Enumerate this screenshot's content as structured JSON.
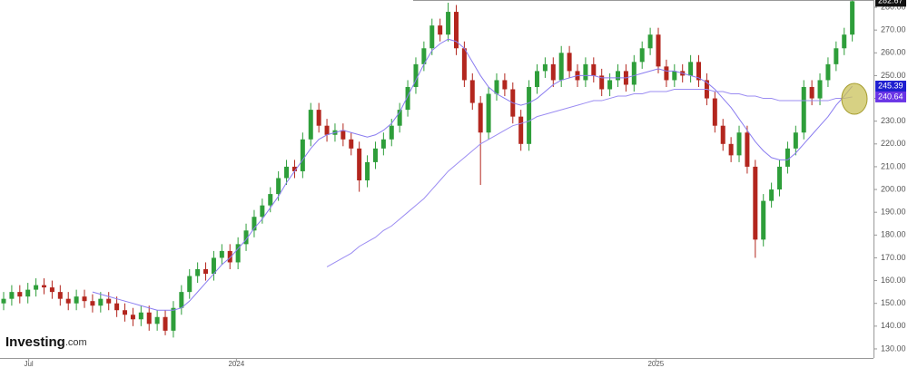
{
  "chart_data": {
    "type": "candlestick",
    "logo": "Investing",
    "logo_suffix": ".com",
    "x": [
      0,
      1,
      2,
      3,
      4,
      5,
      6,
      7,
      8,
      9,
      10,
      11,
      12,
      13,
      14,
      15,
      16,
      17,
      18,
      19,
      20,
      21,
      22,
      23,
      24,
      25,
      26,
      27,
      28,
      29,
      30,
      31,
      32,
      33,
      34,
      35,
      36,
      37,
      38,
      39,
      40,
      41,
      42,
      43,
      44,
      45,
      46,
      47,
      48,
      49,
      50,
      51,
      52,
      53,
      54,
      55,
      56,
      57,
      58,
      59,
      60,
      61,
      62,
      63,
      64,
      65,
      66,
      67,
      68,
      69,
      70,
      71,
      72,
      73,
      74,
      75,
      76,
      77,
      78,
      79,
      80,
      81,
      82,
      83,
      84,
      85,
      86,
      87,
      88,
      89,
      90,
      91,
      92,
      93,
      94,
      95,
      96,
      97,
      98,
      99,
      100,
      101,
      102,
      103,
      104,
      105
    ],
    "open": [
      150,
      152,
      155,
      153,
      156,
      158,
      157,
      155,
      152,
      150,
      153,
      151,
      149,
      152,
      150,
      147,
      145,
      143,
      146,
      141,
      144,
      138,
      148,
      155,
      162,
      165,
      163,
      170,
      173,
      168,
      176,
      182,
      188,
      193,
      198,
      205,
      210,
      208,
      222,
      235,
      228,
      224,
      226,
      222,
      218,
      204,
      212,
      218,
      222,
      228,
      235,
      245,
      255,
      262,
      272,
      268,
      278,
      262,
      248,
      238,
      225,
      242,
      248,
      244,
      232,
      220,
      245,
      252,
      255,
      248,
      260,
      252,
      248,
      255,
      250,
      244,
      248,
      252,
      246,
      256,
      262,
      268,
      254,
      248,
      252,
      250,
      256,
      248,
      240,
      228,
      220,
      215,
      225,
      210,
      178,
      195,
      200,
      210,
      218,
      225,
      245,
      240,
      248,
      255,
      262,
      268
    ],
    "high": [
      155,
      158,
      158,
      159,
      161,
      161,
      160,
      158,
      155,
      156,
      156,
      154,
      155,
      155,
      153,
      150,
      148,
      149,
      149,
      147,
      147,
      151,
      158,
      165,
      168,
      168,
      173,
      176,
      176,
      179,
      185,
      191,
      196,
      201,
      208,
      213,
      213,
      225,
      238,
      238,
      231,
      229,
      229,
      225,
      221,
      215,
      221,
      225,
      231,
      238,
      248,
      258,
      265,
      275,
      275,
      282,
      281,
      265,
      251,
      241,
      245,
      251,
      251,
      247,
      235,
      248,
      255,
      258,
      258,
      263,
      263,
      255,
      258,
      258,
      253,
      251,
      255,
      255,
      259,
      265,
      271,
      271,
      257,
      255,
      255,
      259,
      259,
      251,
      243,
      231,
      223,
      228,
      228,
      213,
      198,
      203,
      213,
      221,
      228,
      248,
      248,
      251,
      258,
      265,
      271,
      283
    ],
    "low": [
      147,
      149,
      150,
      150,
      153,
      154,
      152,
      149,
      147,
      147,
      148,
      146,
      146,
      147,
      144,
      142,
      140,
      140,
      138,
      138,
      136,
      135,
      145,
      152,
      159,
      160,
      160,
      167,
      165,
      165,
      173,
      179,
      185,
      190,
      195,
      202,
      205,
      205,
      219,
      225,
      221,
      221,
      219,
      215,
      199,
      201,
      209,
      215,
      219,
      225,
      232,
      242,
      252,
      259,
      265,
      265,
      259,
      245,
      235,
      202,
      222,
      239,
      241,
      229,
      217,
      217,
      242,
      249,
      245,
      245,
      249,
      245,
      245,
      247,
      241,
      241,
      245,
      243,
      243,
      253,
      259,
      251,
      245,
      245,
      247,
      247,
      245,
      237,
      225,
      217,
      212,
      212,
      207,
      170,
      175,
      192,
      197,
      207,
      215,
      222,
      237,
      237,
      245,
      252,
      259,
      265
    ],
    "close": [
      152,
      155,
      153,
      156,
      158,
      157,
      155,
      152,
      150,
      153,
      151,
      149,
      152,
      150,
      147,
      145,
      143,
      146,
      141,
      144,
      138,
      148,
      155,
      162,
      165,
      163,
      170,
      173,
      168,
      176,
      182,
      188,
      193,
      198,
      205,
      210,
      208,
      222,
      235,
      228,
      224,
      226,
      222,
      218,
      204,
      212,
      218,
      222,
      228,
      235,
      245,
      255,
      262,
      272,
      268,
      278,
      262,
      248,
      238,
      225,
      242,
      248,
      244,
      232,
      220,
      245,
      252,
      255,
      248,
      260,
      252,
      248,
      255,
      250,
      244,
      248,
      252,
      246,
      256,
      262,
      268,
      254,
      248,
      252,
      250,
      256,
      248,
      240,
      228,
      220,
      215,
      225,
      210,
      178,
      195,
      200,
      210,
      218,
      225,
      245,
      240,
      248,
      255,
      262,
      268,
      282.67
    ],
    "up_color": "#2e9e3a",
    "down_color": "#b3261e",
    "series": [
      {
        "color": "#8a7cf0",
        "tag_color": "#1f1fd0",
        "values": [
          null,
          null,
          null,
          null,
          null,
          null,
          null,
          null,
          null,
          null,
          null,
          155,
          154,
          153,
          152,
          151,
          150,
          149,
          148,
          147,
          147,
          147,
          148,
          151,
          155,
          159,
          163,
          167,
          170,
          174,
          178,
          183,
          187,
          192,
          197,
          203,
          208,
          213,
          218,
          222,
          224,
          225,
          226,
          225,
          224,
          223,
          224,
          226,
          229,
          234,
          241,
          248,
          255,
          261,
          264,
          266,
          265,
          262,
          256,
          250,
          245,
          242,
          240,
          238,
          237,
          238,
          240,
          243,
          246,
          248,
          249,
          250,
          250,
          250,
          249,
          249,
          249,
          249,
          250,
          251,
          252,
          253,
          252,
          252,
          251,
          250,
          249,
          247,
          244,
          240,
          236,
          231,
          226,
          221,
          217,
          214,
          213,
          213,
          216,
          220,
          224,
          228,
          232,
          237,
          241,
          245.39
        ]
      },
      {
        "color": "#9b8cf2",
        "tag_color": "#6a35e6",
        "values": [
          null,
          null,
          null,
          null,
          null,
          null,
          null,
          null,
          null,
          null,
          null,
          null,
          null,
          null,
          null,
          null,
          null,
          null,
          null,
          null,
          null,
          null,
          null,
          null,
          null,
          null,
          null,
          null,
          null,
          null,
          null,
          null,
          null,
          null,
          null,
          null,
          null,
          null,
          null,
          null,
          166,
          168,
          170,
          172,
          175,
          177,
          179,
          182,
          184,
          187,
          190,
          193,
          196,
          200,
          204,
          208,
          211,
          214,
          217,
          220,
          222,
          224,
          226,
          228,
          229,
          230,
          232,
          233,
          234,
          235,
          236,
          237,
          238,
          239,
          239,
          240,
          241,
          241,
          242,
          242,
          243,
          243,
          243,
          244,
          244,
          244,
          244,
          244,
          243,
          243,
          242,
          242,
          241,
          241,
          240,
          240,
          239,
          239,
          239,
          239,
          239,
          239,
          239,
          240,
          240,
          240.64
        ]
      }
    ],
    "xlim": [
      -0.45,
      107.4
    ],
    "xticks": [
      {
        "value": 3.1,
        "label": "Jul"
      },
      {
        "value": 28.8,
        "label": "2024"
      },
      {
        "value": 80.7,
        "label": "2025"
      }
    ],
    "ylim": [
      126.0,
      283.2
    ],
    "yticks": [
      {
        "value": 130,
        "label": "130.00"
      },
      {
        "value": 140,
        "label": "140.00"
      },
      {
        "value": 150,
        "label": "150.00"
      },
      {
        "value": 160,
        "label": "160.00"
      },
      {
        "value": 170,
        "label": "170.00"
      },
      {
        "value": 180,
        "label": "180.00"
      },
      {
        "value": 190,
        "label": "190.00"
      },
      {
        "value": 200,
        "label": "200.00"
      },
      {
        "value": 210,
        "label": "210.00"
      },
      {
        "value": 220,
        "label": "220.00"
      },
      {
        "value": 230,
        "label": "230.00"
      },
      {
        "value": 240,
        "label": "240.00"
      },
      {
        "value": 250,
        "label": "250.00"
      },
      {
        "value": 260,
        "label": "260.00"
      },
      {
        "value": 270,
        "label": "270.00"
      },
      {
        "value": 280,
        "label": "280.00"
      }
    ]
  }
}
